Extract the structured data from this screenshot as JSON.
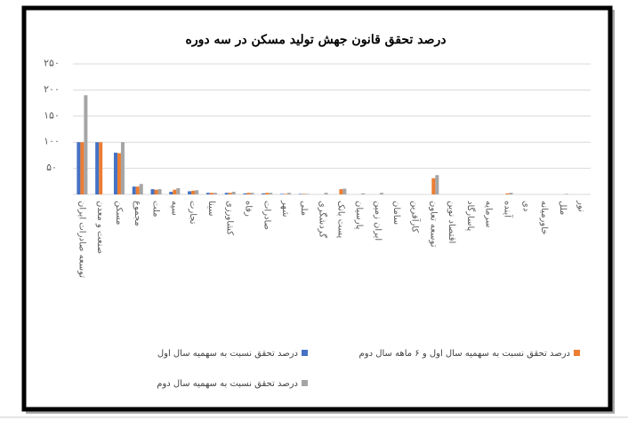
{
  "chart_data": {
    "type": "bar",
    "title": "درصد تحقق قانون جهش تولید مسکن در سه دوره",
    "categories": [
      "توسعه صادرات ایران",
      "صنعت و معدن",
      "مسکن",
      "مجموع",
      "ملت",
      "سپه",
      "تجارت",
      "سینا",
      "کشاورزی",
      "رفاه",
      "صادرات",
      "شهر",
      "ملی",
      "گردشگری",
      "پست بانک",
      "پارسیان",
      "ایران زمین",
      "سامان",
      "کارآفرین",
      "توسعه تعاون",
      "اقتصاد نوین",
      "پاسارگاد",
      "سرمایه",
      "آینده",
      "دی",
      "خاورمیانه",
      "ملل",
      "نور"
    ],
    "series": [
      {
        "name": "درصد تحقق نسبت به سهمیه سال اول",
        "color": "#4472c4",
        "values": [
          100,
          100,
          80,
          15,
          10,
          5,
          6,
          3,
          3,
          2,
          2,
          1,
          1,
          0,
          0,
          0,
          0,
          0,
          0,
          0,
          0,
          0,
          0,
          0,
          0,
          0,
          0,
          0
        ]
      },
      {
        "name": "درصد تحقق نسبت به سهمیه سال اول و ۶ ماهه سال دوم",
        "color": "#ed7d31",
        "values": [
          100,
          100,
          79,
          15,
          9,
          9,
          7,
          3,
          3,
          3,
          3,
          1,
          1,
          0,
          10,
          0,
          0,
          0,
          0,
          31,
          0,
          0,
          0,
          2,
          0,
          0,
          0,
          0
        ]
      },
      {
        "name": "درصد تحقق نسبت به سهمیه سال دوم",
        "color": "#a5a5a5",
        "values": [
          190,
          0,
          100,
          20,
          10,
          12,
          8,
          3,
          5,
          3,
          3,
          3,
          1,
          3,
          11,
          2,
          3,
          0,
          0,
          37,
          0,
          0,
          0,
          3,
          0,
          0,
          1,
          0
        ]
      }
    ],
    "ylim": [
      0,
      250
    ],
    "yticks": [
      {
        "value": 50,
        "label": "۵۰"
      },
      {
        "value": 100,
        "label": "۱۰۰"
      },
      {
        "value": 150,
        "label": "۱۵۰"
      },
      {
        "value": 200,
        "label": "۲۰۰"
      },
      {
        "value": 250,
        "label": "۲۵۰"
      }
    ],
    "grid": true
  }
}
